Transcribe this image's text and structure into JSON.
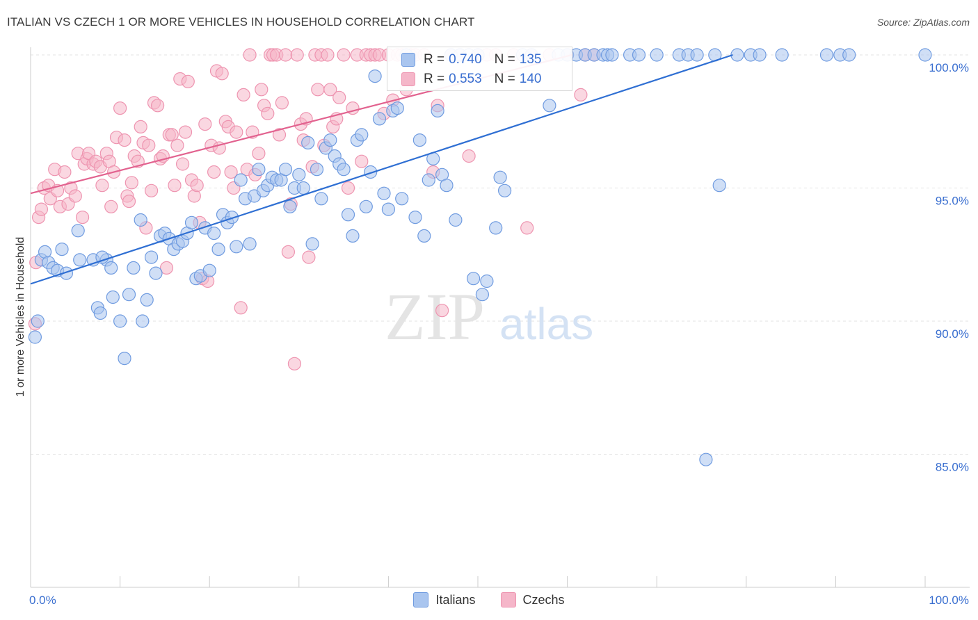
{
  "title": "ITALIAN VS CZECH 1 OR MORE VEHICLES IN HOUSEHOLD CORRELATION CHART",
  "source": "Source: ZipAtlas.com",
  "watermark": {
    "zip": "ZIP",
    "atlas": "atlas"
  },
  "colors": {
    "italians_fill": "#a9c5ef",
    "italians_stroke": "#6f9be0",
    "italians_line": "#2f6fd3",
    "czechs_fill": "#f5b6c9",
    "czechs_stroke": "#ee94b0",
    "czechs_line": "#e2628f",
    "grid": "#e3e3e3",
    "axis_text": "#3a6fd0"
  },
  "legend": {
    "rows": [
      {
        "r_label": "R =",
        "r_value": "0.740",
        "n_label": "N =",
        "n_value": "135"
      },
      {
        "r_label": "R =",
        "r_value": "0.553",
        "n_label": "N =",
        "n_value": "140"
      }
    ],
    "bottom": [
      "Italians",
      "Czechs"
    ]
  },
  "chart_data": {
    "type": "scatter",
    "title": "ITALIAN VS CZECH 1 OR MORE VEHICLES IN HOUSEHOLD CORRELATION CHART",
    "xlabel": "",
    "ylabel": "1 or more Vehicles in Household",
    "xlim": [
      0,
      100
    ],
    "ylim": [
      80.5,
      100.5
    ],
    "x_tick_labels": [
      "0.0%",
      "100.0%"
    ],
    "y_ticks": [
      {
        "value": 100,
        "label": "100.0%"
      },
      {
        "value": 95,
        "label": "95.0%"
      },
      {
        "value": 90,
        "label": "90.0%"
      },
      {
        "value": 85,
        "label": "85.0%"
      }
    ],
    "series": [
      {
        "name": "Italians",
        "r": 0.74,
        "n": 135,
        "trend": {
          "x": [
            0,
            78.5
          ],
          "y": [
            91.4,
            100.0
          ]
        },
        "points": [
          [
            0.5,
            89.4
          ],
          [
            0.8,
            90.0
          ],
          [
            1.2,
            92.3
          ],
          [
            1.6,
            92.6
          ],
          [
            2.0,
            92.2
          ],
          [
            2.5,
            92.0
          ],
          [
            3.5,
            92.7
          ],
          [
            3.0,
            91.9
          ],
          [
            4.0,
            91.8
          ],
          [
            5.5,
            92.3
          ],
          [
            5.3,
            93.4
          ],
          [
            7.0,
            92.3
          ],
          [
            8.5,
            92.3
          ],
          [
            8.0,
            92.4
          ],
          [
            9.0,
            92.0
          ],
          [
            7.5,
            90.5
          ],
          [
            7.8,
            90.3
          ],
          [
            9.2,
            90.9
          ],
          [
            10.0,
            90.0
          ],
          [
            10.5,
            88.6
          ],
          [
            11.0,
            91.0
          ],
          [
            11.5,
            92.0
          ],
          [
            12.5,
            90.0
          ],
          [
            12.3,
            93.8
          ],
          [
            13.0,
            90.8
          ],
          [
            13.5,
            92.4
          ],
          [
            14.0,
            91.8
          ],
          [
            14.5,
            93.2
          ],
          [
            15.0,
            93.3
          ],
          [
            15.5,
            93.1
          ],
          [
            16.0,
            92.7
          ],
          [
            16.5,
            92.9
          ],
          [
            17.0,
            93.0
          ],
          [
            17.5,
            93.3
          ],
          [
            18.0,
            93.7
          ],
          [
            18.5,
            91.6
          ],
          [
            19.0,
            91.7
          ],
          [
            19.5,
            93.5
          ],
          [
            20.0,
            91.9
          ],
          [
            20.5,
            93.3
          ],
          [
            21.0,
            92.7
          ],
          [
            21.5,
            94.0
          ],
          [
            22.0,
            93.7
          ],
          [
            22.5,
            93.9
          ],
          [
            23.0,
            92.8
          ],
          [
            23.5,
            95.3
          ],
          [
            24.0,
            94.6
          ],
          [
            24.5,
            92.9
          ],
          [
            25.0,
            94.7
          ],
          [
            25.5,
            95.7
          ],
          [
            26.0,
            94.9
          ],
          [
            26.5,
            95.1
          ],
          [
            27.0,
            95.4
          ],
          [
            27.5,
            95.3
          ],
          [
            28.0,
            95.3
          ],
          [
            28.5,
            95.7
          ],
          [
            29.0,
            94.3
          ],
          [
            29.5,
            95.0
          ],
          [
            30.0,
            95.5
          ],
          [
            30.5,
            95.0
          ],
          [
            31.0,
            96.7
          ],
          [
            31.5,
            92.9
          ],
          [
            32.0,
            95.7
          ],
          [
            32.5,
            94.6
          ],
          [
            33.0,
            96.5
          ],
          [
            33.5,
            96.8
          ],
          [
            34.0,
            96.2
          ],
          [
            34.5,
            95.9
          ],
          [
            35.0,
            95.7
          ],
          [
            35.5,
            94.0
          ],
          [
            36.0,
            93.2
          ],
          [
            36.5,
            96.8
          ],
          [
            37.0,
            97.0
          ],
          [
            37.5,
            94.3
          ],
          [
            38.0,
            95.6
          ],
          [
            38.5,
            99.2
          ],
          [
            39.0,
            97.6
          ],
          [
            39.5,
            94.8
          ],
          [
            40.0,
            94.2
          ],
          [
            40.5,
            97.9
          ],
          [
            41.0,
            98.0
          ],
          [
            41.5,
            94.6
          ],
          [
            42.0,
            100.0
          ],
          [
            43.0,
            93.9
          ],
          [
            43.5,
            96.8
          ],
          [
            44.0,
            93.2
          ],
          [
            44.5,
            95.3
          ],
          [
            45.0,
            96.1
          ],
          [
            45.5,
            97.9
          ],
          [
            46.0,
            95.5
          ],
          [
            46.5,
            95.1
          ],
          [
            47.0,
            100.0
          ],
          [
            47.5,
            93.8
          ],
          [
            48.0,
            100.0
          ],
          [
            49.0,
            100.0
          ],
          [
            49.5,
            91.6
          ],
          [
            50.0,
            100.0
          ],
          [
            50.5,
            91.0
          ],
          [
            51.0,
            91.5
          ],
          [
            52.0,
            93.5
          ],
          [
            52.5,
            95.4
          ],
          [
            53.0,
            94.9
          ],
          [
            55.0,
            100.0
          ],
          [
            56.0,
            100.0
          ],
          [
            58.0,
            98.1
          ],
          [
            59.0,
            100.0
          ],
          [
            60.0,
            100.0
          ],
          [
            61.0,
            100.0
          ],
          [
            62.0,
            100.0
          ],
          [
            63.0,
            100.0
          ],
          [
            64.0,
            100.0
          ],
          [
            64.5,
            100.0
          ],
          [
            65.0,
            100.0
          ],
          [
            67.0,
            100.0
          ],
          [
            68.0,
            100.0
          ],
          [
            70.0,
            100.0
          ],
          [
            72.5,
            100.0
          ],
          [
            73.5,
            100.0
          ],
          [
            74.5,
            100.0
          ],
          [
            75.5,
            84.8
          ],
          [
            76.5,
            100.0
          ],
          [
            77.0,
            95.1
          ],
          [
            79.0,
            100.0
          ],
          [
            80.5,
            100.0
          ],
          [
            81.5,
            100.0
          ],
          [
            84.0,
            100.0
          ],
          [
            89.0,
            100.0
          ],
          [
            90.5,
            100.0
          ],
          [
            91.5,
            100.0
          ],
          [
            100.0,
            100.0
          ]
        ]
      },
      {
        "name": "Czechs",
        "r": 0.553,
        "n": 140,
        "trend": {
          "x": [
            0,
            60.5
          ],
          "y": [
            94.8,
            100.0
          ]
        },
        "points": [
          [
            0.5,
            89.9
          ],
          [
            0.6,
            92.2
          ],
          [
            0.9,
            93.9
          ],
          [
            1.2,
            94.2
          ],
          [
            1.5,
            95.0
          ],
          [
            2.0,
            95.1
          ],
          [
            2.2,
            94.6
          ],
          [
            2.7,
            95.7
          ],
          [
            3.0,
            94.9
          ],
          [
            3.3,
            94.3
          ],
          [
            3.8,
            95.6
          ],
          [
            4.2,
            94.4
          ],
          [
            4.5,
            95.0
          ],
          [
            5.0,
            94.7
          ],
          [
            5.3,
            96.3
          ],
          [
            5.8,
            93.9
          ],
          [
            6.0,
            95.9
          ],
          [
            6.3,
            96.1
          ],
          [
            6.5,
            96.3
          ],
          [
            7.0,
            95.9
          ],
          [
            7.3,
            96.0
          ],
          [
            7.8,
            95.8
          ],
          [
            8.0,
            95.1
          ],
          [
            8.5,
            96.3
          ],
          [
            8.8,
            96.0
          ],
          [
            9.0,
            94.3
          ],
          [
            9.3,
            95.6
          ],
          [
            9.6,
            96.9
          ],
          [
            10.0,
            98.0
          ],
          [
            10.5,
            96.8
          ],
          [
            10.8,
            94.7
          ],
          [
            11.0,
            94.5
          ],
          [
            11.3,
            95.2
          ],
          [
            11.6,
            96.2
          ],
          [
            12.0,
            96.0
          ],
          [
            12.3,
            97.3
          ],
          [
            12.6,
            96.7
          ],
          [
            12.9,
            93.5
          ],
          [
            13.2,
            96.6
          ],
          [
            13.5,
            94.9
          ],
          [
            13.8,
            98.2
          ],
          [
            14.2,
            98.1
          ],
          [
            14.5,
            96.1
          ],
          [
            14.8,
            96.2
          ],
          [
            15.2,
            92.0
          ],
          [
            15.5,
            97.0
          ],
          [
            15.8,
            97.0
          ],
          [
            16.1,
            95.1
          ],
          [
            16.4,
            96.6
          ],
          [
            16.7,
            99.1
          ],
          [
            17.0,
            95.9
          ],
          [
            17.3,
            97.1
          ],
          [
            17.6,
            99.0
          ],
          [
            18.0,
            95.3
          ],
          [
            18.3,
            94.7
          ],
          [
            18.6,
            95.1
          ],
          [
            18.9,
            93.7
          ],
          [
            19.2,
            91.6
          ],
          [
            19.5,
            97.4
          ],
          [
            19.8,
            91.5
          ],
          [
            20.2,
            96.6
          ],
          [
            20.5,
            95.6
          ],
          [
            20.8,
            99.4
          ],
          [
            21.1,
            96.5
          ],
          [
            21.4,
            99.3
          ],
          [
            21.8,
            97.5
          ],
          [
            22.1,
            97.3
          ],
          [
            22.4,
            95.6
          ],
          [
            22.7,
            95.0
          ],
          [
            23.0,
            97.1
          ],
          [
            23.5,
            90.5
          ],
          [
            23.8,
            98.5
          ],
          [
            24.2,
            95.7
          ],
          [
            24.5,
            100.0
          ],
          [
            24.8,
            97.1
          ],
          [
            25.1,
            95.5
          ],
          [
            25.5,
            96.3
          ],
          [
            25.8,
            98.7
          ],
          [
            26.1,
            98.1
          ],
          [
            26.5,
            97.8
          ],
          [
            26.8,
            100.0
          ],
          [
            27.1,
            100.0
          ],
          [
            27.5,
            100.0
          ],
          [
            27.8,
            97.0
          ],
          [
            28.1,
            98.2
          ],
          [
            28.5,
            100.0
          ],
          [
            28.8,
            92.6
          ],
          [
            29.1,
            94.4
          ],
          [
            29.5,
            88.4
          ],
          [
            29.8,
            100.0
          ],
          [
            30.2,
            97.4
          ],
          [
            30.5,
            96.8
          ],
          [
            30.8,
            97.6
          ],
          [
            31.1,
            92.4
          ],
          [
            31.5,
            95.8
          ],
          [
            31.8,
            100.0
          ],
          [
            32.1,
            98.7
          ],
          [
            32.5,
            100.0
          ],
          [
            32.8,
            96.6
          ],
          [
            33.2,
            100.0
          ],
          [
            33.5,
            98.7
          ],
          [
            33.8,
            97.3
          ],
          [
            34.2,
            97.6
          ],
          [
            34.5,
            98.4
          ],
          [
            35.0,
            100.0
          ],
          [
            35.5,
            95.0
          ],
          [
            36.0,
            98.0
          ],
          [
            36.5,
            100.0
          ],
          [
            37.0,
            96.0
          ],
          [
            37.5,
            100.0
          ],
          [
            38.0,
            100.0
          ],
          [
            38.5,
            100.0
          ],
          [
            39.0,
            100.0
          ],
          [
            39.5,
            97.8
          ],
          [
            40.0,
            100.0
          ],
          [
            40.5,
            98.3
          ],
          [
            41.0,
            100.0
          ],
          [
            41.5,
            100.0
          ],
          [
            42.0,
            98.7
          ],
          [
            42.5,
            100.0
          ],
          [
            43.0,
            100.0
          ],
          [
            44.0,
            100.0
          ],
          [
            45.0,
            95.6
          ],
          [
            45.5,
            98.1
          ],
          [
            46.0,
            90.4
          ],
          [
            47.0,
            100.0
          ],
          [
            48.0,
            100.0
          ],
          [
            49.0,
            96.2
          ],
          [
            50.0,
            100.0
          ],
          [
            51.0,
            100.0
          ],
          [
            52.0,
            100.0
          ],
          [
            54.0,
            100.0
          ],
          [
            55.5,
            93.5
          ],
          [
            56.0,
            100.0
          ],
          [
            58.0,
            100.0
          ],
          [
            60.0,
            100.0
          ],
          [
            61.5,
            98.5
          ],
          [
            62.0,
            100.0
          ],
          [
            63.0,
            100.0
          ]
        ]
      }
    ]
  }
}
